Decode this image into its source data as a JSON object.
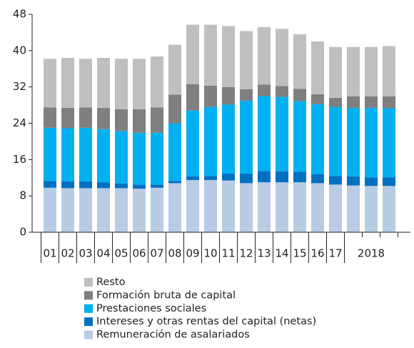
{
  "chart_data": {
    "type": "stacked_bar",
    "categories": [
      "01",
      "02",
      "03",
      "04",
      "05",
      "06",
      "07",
      "08",
      "09",
      "10",
      "11",
      "12",
      "13",
      "14",
      "15",
      "16",
      "17",
      null,
      "2018",
      null
    ],
    "series": [
      {
        "name": "Remuneración de asalariados",
        "color": "#b8cce4",
        "values": [
          9.8,
          9.7,
          9.7,
          9.7,
          9.7,
          9.6,
          9.8,
          10.8,
          11.5,
          11.5,
          11.4,
          10.8,
          11.0,
          11.0,
          11.0,
          10.8,
          10.5,
          10.3,
          10.2,
          10.2
        ]
      },
      {
        "name": "Intereses y otras rentas del capital (netas)",
        "color": "#0070c0",
        "values": [
          1.5,
          1.5,
          1.5,
          1.3,
          1.0,
          0.9,
          0.7,
          0.5,
          0.8,
          0.9,
          1.5,
          2.1,
          2.5,
          2.4,
          2.3,
          2.0,
          1.9,
          2.0,
          1.9,
          1.9
        ]
      },
      {
        "name": "Prestaciones sociales",
        "color": "#00b0f0",
        "values": [
          11.7,
          11.7,
          11.8,
          11.7,
          11.6,
          11.4,
          11.4,
          12.7,
          14.5,
          15.2,
          15.2,
          16.1,
          16.5,
          16.4,
          15.6,
          15.4,
          15.2,
          15.1,
          15.3,
          15.2
        ]
      },
      {
        "name": "Formación bruta de capital",
        "color": "#7f7f7f",
        "values": [
          4.5,
          4.5,
          4.5,
          4.7,
          4.8,
          5.2,
          5.6,
          6.3,
          5.8,
          4.7,
          3.9,
          2.5,
          2.5,
          2.4,
          2.7,
          2.2,
          2.0,
          2.5,
          2.5,
          2.6
        ]
      },
      {
        "name": "Resto",
        "color": "#bfbfbf",
        "values": [
          10.7,
          11.0,
          10.7,
          11.0,
          11.1,
          11.1,
          11.2,
          11.0,
          13.1,
          13.4,
          13.4,
          12.8,
          12.7,
          12.6,
          12.0,
          11.6,
          11.2,
          10.9,
          10.9,
          11.1
        ]
      }
    ],
    "ylim": [
      0,
      48
    ],
    "yticks": [
      0,
      8,
      16,
      24,
      32,
      40,
      48
    ]
  }
}
